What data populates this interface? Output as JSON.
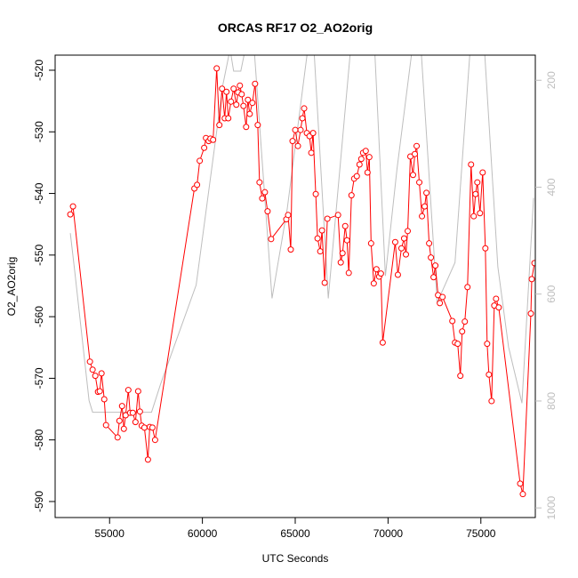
{
  "chart_data": {
    "type": "line",
    "title": "ORCAS RF17 O2_AO2orig",
    "x_label": "UTC Seconds",
    "y_label": "O2_AO2orig",
    "xlim": [
      52067,
      77933
    ],
    "ylim": [
      -592.6,
      -517.55
    ],
    "y2lim": [
      1018,
      153
    ],
    "xticks": [
      55000,
      60000,
      65000,
      70000,
      75000
    ],
    "yticks": [
      -520,
      -530,
      -540,
      -550,
      -560,
      -570,
      -580,
      -590
    ],
    "y2ticks": [
      200,
      400,
      600,
      800,
      1000
    ],
    "grid": false,
    "series": [
      {
        "color": "#bebebe",
        "axis": "y2",
        "markers": false,
        "x": [
          52885,
          53125,
          53894,
          54086,
          57260,
          57741,
          59664,
          60241,
          61106,
          61490,
          61683,
          62068,
          62308,
          62789,
          63750,
          64568,
          65674,
          66010,
          66780,
          67982,
          69280,
          69857,
          70482,
          71299,
          71779,
          72645,
          73607,
          74424,
          75193,
          75915,
          76492,
          77213,
          77838
        ],
        "values": [
          486,
          558,
          799,
          821,
          821,
          769,
          583,
          433,
          208,
          142,
          183,
          183,
          142,
          142,
          608,
          441,
          142,
          142,
          608,
          142,
          142,
          566,
          366,
          142,
          142,
          616,
          541,
          142,
          142,
          549,
          699,
          804,
          420
        ]
      },
      {
        "color": "#ff0000",
        "axis": "y",
        "markers": true,
        "x": [
          52885,
          53029,
          53942,
          54086,
          54231,
          54375,
          54471,
          54567,
          54712,
          54808,
          55433,
          55529,
          55673,
          55769,
          55865,
          56010,
          56106,
          56250,
          56394,
          56539,
          56635,
          56731,
          56875,
          57067,
          57164,
          57308,
          57452,
          59568,
          59712,
          59856,
          60096,
          60192,
          60337,
          60433,
          60577,
          60770,
          60914,
          61058,
          61202,
          61298,
          61394,
          61539,
          61683,
          61827,
          61923,
          62020,
          62116,
          62212,
          62356,
          62452,
          62549,
          62693,
          62837,
          62981,
          63077,
          63222,
          63366,
          63510,
          63702,
          64520,
          64616,
          64760,
          64856,
          65001,
          65145,
          65289,
          65385,
          65481,
          65626,
          65770,
          65866,
          65962,
          66106,
          66203,
          66347,
          66443,
          66587,
          66732,
          67308,
          67453,
          67549,
          67693,
          67789,
          67885,
          68030,
          68174,
          68318,
          68462,
          68559,
          68655,
          68799,
          68895,
          68991,
          69087,
          69232,
          69376,
          69520,
          69616,
          69712,
          70386,
          70530,
          70722,
          70866,
          70963,
          71059,
          71203,
          71347,
          71443,
          71540,
          71684,
          71828,
          71972,
          72068,
          72213,
          72309,
          72453,
          72549,
          72693,
          72790,
          72934,
          73463,
          73607,
          73751,
          73895,
          73992,
          74136,
          74280,
          74472,
          74616,
          74713,
          74809,
          74953,
          75097,
          75242,
          75338,
          75434,
          75578,
          75722,
          75818,
          75963,
          77117,
          77261,
          77694,
          77742,
          77886
        ],
        "values": [
          -543.4,
          -542.1,
          -567.3,
          -568.6,
          -569.6,
          -572.2,
          -572.1,
          -569.2,
          -573.4,
          -577.6,
          -579.6,
          -576.9,
          -574.5,
          -578.2,
          -576.0,
          -571.9,
          -575.6,
          -575.6,
          -577.1,
          -572.1,
          -575.4,
          -577.7,
          -578.0,
          -583.2,
          -577.9,
          -578.0,
          -580.0,
          -539.2,
          -538.6,
          -534.7,
          -532.6,
          -531.0,
          -531.5,
          -531.1,
          -531.3,
          -519.7,
          -528.9,
          -523.0,
          -527.8,
          -523.5,
          -527.8,
          -525.1,
          -523.0,
          -525.6,
          -523.6,
          -522.5,
          -523.9,
          -525.8,
          -529.2,
          -524.8,
          -527.1,
          -525.3,
          -522.2,
          -528.9,
          -538.2,
          -540.8,
          -539.8,
          -542.9,
          -547.4,
          -544.2,
          -543.5,
          -549.1,
          -531.5,
          -529.7,
          -532.3,
          -529.7,
          -527.8,
          -526.2,
          -530.2,
          -530.7,
          -533.4,
          -530.2,
          -540.1,
          -547.3,
          -549.4,
          -546.0,
          -554.5,
          -544.1,
          -543.5,
          -551.2,
          -549.7,
          -545.3,
          -547.6,
          -552.9,
          -540.3,
          -537.6,
          -537.2,
          -535.3,
          -534.4,
          -533.4,
          -533.1,
          -536.6,
          -534.1,
          -548.1,
          -554.6,
          -552.3,
          -553.5,
          -553.0,
          -564.2,
          -547.9,
          -553.2,
          -548.9,
          -547.3,
          -549.9,
          -546.1,
          -534.0,
          -537.0,
          -533.6,
          -532.3,
          -538.2,
          -543.7,
          -542.1,
          -539.9,
          -548.1,
          -550.4,
          -553.6,
          -551.7,
          -556.5,
          -557.8,
          -556.8,
          -560.7,
          -564.2,
          -564.4,
          -569.6,
          -562.4,
          -560.8,
          -555.2,
          -535.3,
          -543.7,
          -540.1,
          -538.2,
          -543.2,
          -536.6,
          -548.9,
          -564.4,
          -569.4,
          -573.7,
          -558.2,
          -557.1,
          -558.5,
          -587.1,
          -588.8,
          -559.5,
          -553.9,
          -551.3
        ]
      }
    ]
  }
}
